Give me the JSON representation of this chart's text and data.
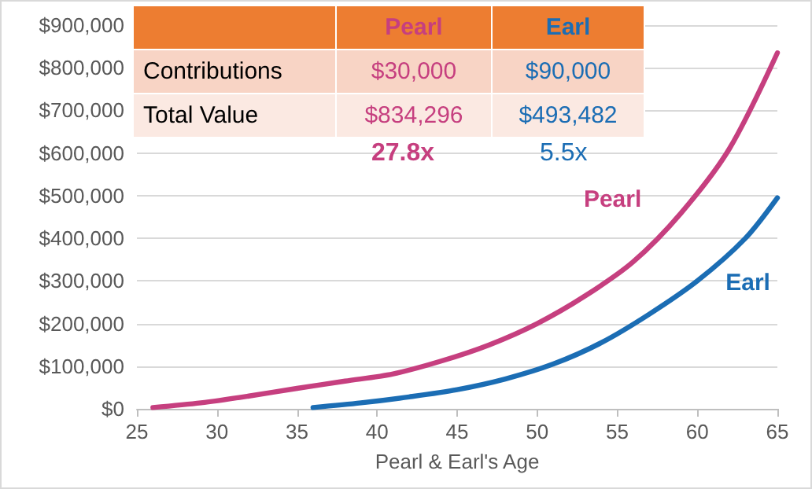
{
  "chart_data": {
    "type": "line",
    "xlabel": "Pearl & Earl's Age",
    "xlim": [
      25,
      65
    ],
    "xticks": [
      25,
      30,
      35,
      40,
      45,
      50,
      55,
      60,
      65
    ],
    "ylim": [
      0,
      900000
    ],
    "yticks": [
      {
        "value": 0,
        "label": "$0"
      },
      {
        "value": 100000,
        "label": "$100,000"
      },
      {
        "value": 200000,
        "label": "$200,000"
      },
      {
        "value": 300000,
        "label": "$300,000"
      },
      {
        "value": 400000,
        "label": "$400,000"
      },
      {
        "value": 500000,
        "label": "$500,000"
      },
      {
        "value": 600000,
        "label": "$600,000"
      },
      {
        "value": 700000,
        "label": "$700,000"
      },
      {
        "value": 800000,
        "label": "$800,000"
      },
      {
        "value": 900000,
        "label": "$900,000"
      }
    ],
    "grid": "y",
    "marker": "none",
    "series": [
      {
        "name": "Pearl",
        "color": "#c63f7f",
        "x": [
          26,
          29,
          32,
          35,
          38,
          41,
          44,
          47,
          50,
          53,
          56,
          59,
          62,
          65
        ],
        "values": [
          3000,
          14000,
          30000,
          48000,
          65000,
          82000,
          112000,
          150000,
          200000,
          265000,
          345000,
          460000,
          610000,
          835000
        ]
      },
      {
        "name": "Earl",
        "color": "#1b6db4",
        "x": [
          36,
          39,
          42,
          45,
          48,
          51,
          54,
          57,
          60,
          63,
          65
        ],
        "values": [
          3000,
          14000,
          28000,
          45000,
          70000,
          105000,
          155000,
          222000,
          300000,
          400000,
          495000
        ]
      }
    ],
    "annotations": [
      "Pearl",
      "Earl",
      "Contributions",
      "$30,000",
      "$90,000",
      "Total Value",
      "$834,296",
      "$493,482",
      "27.8x",
      "5.5x"
    ]
  }
}
